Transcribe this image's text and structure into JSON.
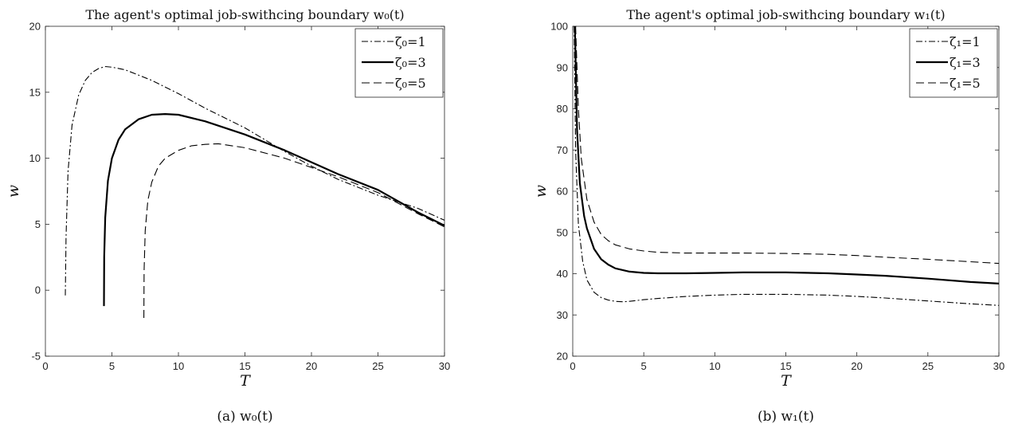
{
  "chart_data": [
    {
      "type": "line",
      "title": "The agent's optimal job-swithcing boundary w₀(t)",
      "xlabel": "T",
      "ylabel": "w",
      "xlim": [
        0,
        30
      ],
      "ylim": [
        -5,
        20
      ],
      "xticks": [
        "0",
        "5",
        "10",
        "15",
        "20",
        "25",
        "30"
      ],
      "yticks": [
        "-5",
        "0",
        "5",
        "10",
        "15",
        "20"
      ],
      "legend_position": "top-right",
      "caption": "(a)  w₀(t)",
      "series": [
        {
          "name": "ζ₀=1",
          "style": "dashdot",
          "x": [
            1.5,
            1.55,
            1.7,
            2.0,
            2.5,
            3.0,
            3.5,
            4.0,
            4.5,
            5.0,
            6.0,
            8.0,
            10.0,
            12.0,
            15.0,
            18.0,
            20.0,
            22.0,
            25.0,
            28.0,
            30.0
          ],
          "y": [
            -0.4,
            4.0,
            9.0,
            12.5,
            14.8,
            15.9,
            16.5,
            16.8,
            16.95,
            16.9,
            16.7,
            15.9,
            14.9,
            13.8,
            12.3,
            10.5,
            9.4,
            8.4,
            7.2,
            6.2,
            5.3
          ]
        },
        {
          "name": "ζ₀=3",
          "style": "solid",
          "x": [
            4.4,
            4.42,
            4.5,
            4.7,
            5.0,
            5.5,
            6.0,
            7.0,
            8.0,
            9.0,
            10.0,
            12.0,
            15.0,
            18.0,
            20.0,
            22.0,
            25.0,
            28.0,
            30.0
          ],
          "y": [
            -1.2,
            2.5,
            5.5,
            8.3,
            10.0,
            11.4,
            12.2,
            12.95,
            13.3,
            13.35,
            13.3,
            12.8,
            11.8,
            10.6,
            9.7,
            8.8,
            7.6,
            5.9,
            4.9
          ]
        },
        {
          "name": "ζ₀=5",
          "style": "dashed",
          "x": [
            7.4,
            7.42,
            7.5,
            7.7,
            8.0,
            8.5,
            9.0,
            10.0,
            11.0,
            12.0,
            13.0,
            15.0,
            18.0,
            20.0,
            22.0,
            25.0,
            28.0,
            30.0
          ],
          "y": [
            -2.1,
            1.5,
            4.5,
            6.8,
            8.2,
            9.4,
            10.0,
            10.6,
            10.95,
            11.05,
            11.1,
            10.8,
            10.0,
            9.3,
            8.6,
            7.4,
            5.8,
            4.8
          ]
        }
      ]
    },
    {
      "type": "line",
      "title": "The agent's optimal job-swithcing boundary w₁(t)",
      "xlabel": "T",
      "ylabel": "w",
      "xlim": [
        0,
        30
      ],
      "ylim": [
        20,
        100
      ],
      "xticks": [
        "0",
        "5",
        "10",
        "15",
        "20",
        "25",
        "30"
      ],
      "yticks": [
        "20",
        "30",
        "40",
        "50",
        "60",
        "70",
        "80",
        "90",
        "100"
      ],
      "legend_position": "top-right",
      "caption": "(b)  w₁(t)",
      "series": [
        {
          "name": "ζ₁=1",
          "style": "dashdot",
          "x": [
            0.1,
            0.2,
            0.4,
            0.7,
            1.0,
            1.5,
            2.0,
            2.5,
            3.0,
            3.5,
            4.0,
            5.0,
            6.0,
            8.0,
            10.0,
            12.0,
            15.0,
            18.0,
            20.0,
            22.0,
            25.0,
            28.0,
            30.0
          ],
          "y": [
            100,
            70,
            52,
            43,
            38.5,
            35.5,
            34.2,
            33.6,
            33.3,
            33.2,
            33.3,
            33.7,
            34.0,
            34.5,
            34.8,
            35.0,
            35.0,
            34.8,
            34.5,
            34.1,
            33.4,
            32.7,
            32.3
          ]
        },
        {
          "name": "ζ₁=3",
          "style": "solid",
          "x": [
            0.15,
            0.3,
            0.5,
            0.8,
            1.0,
            1.5,
            2.0,
            2.5,
            3.0,
            4.0,
            5.0,
            6.0,
            8.0,
            10.0,
            12.0,
            15.0,
            18.0,
            20.0,
            22.0,
            25.0,
            28.0,
            30.0
          ],
          "y": [
            100,
            75,
            62,
            54,
            51,
            46,
            43.5,
            42.2,
            41.3,
            40.5,
            40.2,
            40.1,
            40.1,
            40.2,
            40.3,
            40.3,
            40.1,
            39.8,
            39.5,
            38.8,
            38.0,
            37.6
          ]
        },
        {
          "name": "ζ₁=5",
          "style": "dashed",
          "x": [
            0.2,
            0.4,
            0.6,
            1.0,
            1.5,
            2.0,
            2.5,
            3.0,
            4.0,
            5.0,
            6.0,
            8.0,
            10.0,
            12.0,
            15.0,
            18.0,
            20.0,
            22.0,
            25.0,
            28.0,
            30.0
          ],
          "y": [
            100,
            80,
            68,
            58,
            52.5,
            49.5,
            48.0,
            47.0,
            46.0,
            45.5,
            45.2,
            45.0,
            45.0,
            45.0,
            44.9,
            44.7,
            44.4,
            44.0,
            43.5,
            42.9,
            42.5
          ]
        }
      ]
    }
  ]
}
